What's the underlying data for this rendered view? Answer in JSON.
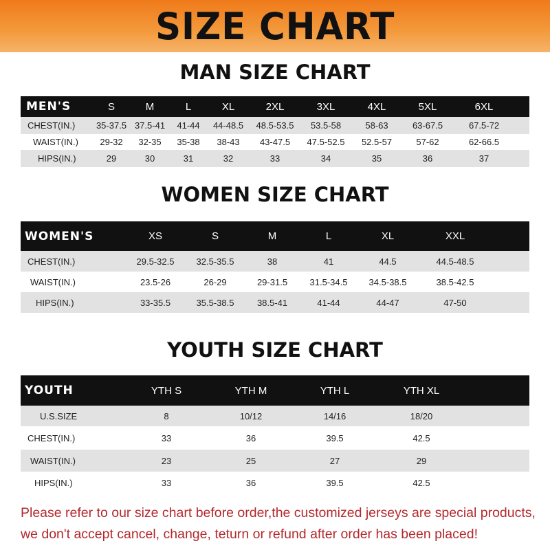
{
  "title": "SIZE CHART",
  "men": {
    "title": "MAN SIZE CHART",
    "header": [
      "MEN'S",
      "S",
      "M",
      "L",
      "XL",
      "2XL",
      "3XL",
      "4XL",
      "5XL",
      "6XL"
    ],
    "rows": [
      [
        "CHEST(IN.)",
        "35-37.5",
        "37.5-41",
        "41-44",
        "44-48.5",
        "48.5-53.5",
        "53.5-58",
        "58-63",
        "63-67.5",
        "67.5-72"
      ],
      [
        "WAIST(IN.)",
        "29-32",
        "32-35",
        "35-38",
        "38-43",
        "43-47.5",
        "47.5-52.5",
        "52.5-57",
        "57-62",
        "62-66.5"
      ],
      [
        "HIPS(IN.)",
        "29",
        "30",
        "31",
        "32",
        "33",
        "34",
        "35",
        "36",
        "37"
      ]
    ]
  },
  "women": {
    "title": "WOMEN SIZE CHART",
    "header": [
      "WOMEN'S",
      "XS",
      "S",
      "M",
      "L",
      "XL",
      "XXL"
    ],
    "rows": [
      [
        "CHEST(IN.)",
        "29.5-32.5",
        "32.5-35.5",
        "38",
        "41",
        "44.5",
        "44.5-48.5"
      ],
      [
        "WAIST(IN.)",
        "23.5-26",
        "26-29",
        "29-31.5",
        "31.5-34.5",
        "34.5-38.5",
        "38.5-42.5"
      ],
      [
        "HIPS(IN.)",
        "33-35.5",
        "35.5-38.5",
        "38.5-41",
        "41-44",
        "44-47",
        "47-50"
      ]
    ]
  },
  "youth": {
    "title": "YOUTH SIZE CHART",
    "header": [
      "YOUTH",
      "YTH S",
      "YTH M",
      "YTH L",
      "YTH XL"
    ],
    "rows": [
      [
        "U.S.SIZE",
        "8",
        "10/12",
        "14/16",
        "18/20"
      ],
      [
        "CHEST(IN.)",
        "33",
        "36",
        "39.5",
        "42.5"
      ],
      [
        "WAIST(IN.)",
        "23",
        "25",
        "27",
        "29"
      ],
      [
        "HIPS(IN.)",
        "33",
        "36",
        "39.5",
        "42.5"
      ]
    ]
  },
  "note": {
    "line1": "Please refer to our size chart before order,the customized jerseys are special products,",
    "line2": "we don't accept cancel, change, teturn or refund after order has been placed!"
  },
  "colors": {
    "banner": "#f07a1a",
    "header_row": "#111111",
    "stripe": "#e2e2e2",
    "note": "#b3282d"
  }
}
